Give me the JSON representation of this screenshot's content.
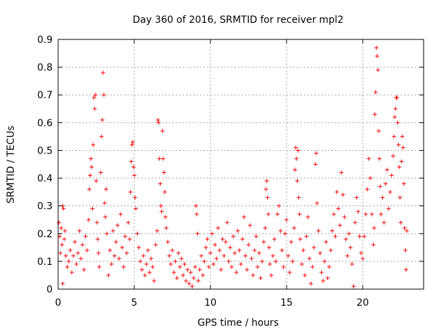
{
  "chart_data": {
    "type": "scatter",
    "title": "Day 360 of 2016, SRMTID for receiver mpl2",
    "xlabel": "GPS time / hours",
    "ylabel": "SRMTID / TECUs",
    "xlim": [
      0,
      24
    ],
    "ylim": [
      0,
      0.9
    ],
    "xticks": [
      0,
      5,
      10,
      15,
      20
    ],
    "xtick_labels": [
      "0",
      "5",
      "10",
      "15",
      "20"
    ],
    "yticks": [
      0,
      0.1,
      0.2,
      0.3,
      0.4,
      0.5,
      0.6,
      0.7,
      0.8,
      0.9
    ],
    "ytick_labels": [
      "0",
      "0.1",
      "0.2",
      "0.3",
      "0.4",
      "0.5",
      "0.6",
      "0.7",
      "0.8",
      "0.9"
    ],
    "grid": true,
    "marker": "+",
    "series": [
      {
        "name": "SRMTID",
        "color": "#ff0000",
        "points": [
          [
            0.05,
            0.24
          ],
          [
            0.1,
            0.19
          ],
          [
            0.15,
            0.13
          ],
          [
            0.2,
            0.22
          ],
          [
            0.25,
            0.16
          ],
          [
            0.3,
            0.3
          ],
          [
            0.35,
            0.29
          ],
          [
            0.4,
            0.18
          ],
          [
            0.45,
            0.21
          ],
          [
            0.5,
            0.12
          ],
          [
            0.3,
            0.02
          ],
          [
            0.6,
            0.08
          ],
          [
            0.7,
            0.1
          ],
          [
            0.8,
            0.14
          ],
          [
            0.9,
            0.06
          ],
          [
            1.0,
            0.12
          ],
          [
            1.1,
            0.17
          ],
          [
            1.2,
            0.09
          ],
          [
            1.3,
            0.13
          ],
          [
            1.4,
            0.21
          ],
          [
            1.5,
            0.11
          ],
          [
            1.6,
            0.16
          ],
          [
            1.7,
            0.07
          ],
          [
            1.8,
            0.19
          ],
          [
            1.9,
            0.14
          ],
          [
            2.0,
            0.25
          ],
          [
            2.05,
            0.36
          ],
          [
            2.1,
            0.41
          ],
          [
            2.15,
            0.47
          ],
          [
            2.2,
            0.44
          ],
          [
            2.25,
            0.29
          ],
          [
            2.3,
            0.52
          ],
          [
            2.35,
            0.69
          ],
          [
            2.4,
            0.65
          ],
          [
            2.45,
            0.7
          ],
          [
            2.5,
            0.39
          ],
          [
            2.55,
            0.24
          ],
          [
            2.6,
            0.18
          ],
          [
            2.65,
            0.13
          ],
          [
            2.7,
            0.08
          ],
          [
            2.8,
            0.42
          ],
          [
            2.85,
            0.55
          ],
          [
            2.9,
            0.61
          ],
          [
            2.95,
            0.78
          ],
          [
            3.0,
            0.7
          ],
          [
            3.05,
            0.31
          ],
          [
            3.1,
            0.26
          ],
          [
            3.15,
            0.36
          ],
          [
            3.2,
            0.2
          ],
          [
            3.3,
            0.05
          ],
          [
            3.4,
            0.14
          ],
          [
            3.5,
            0.09
          ],
          [
            3.6,
            0.21
          ],
          [
            3.7,
            0.12
          ],
          [
            3.8,
            0.17
          ],
          [
            3.9,
            0.23
          ],
          [
            4.0,
            0.11
          ],
          [
            4.1,
            0.27
          ],
          [
            4.2,
            0.15
          ],
          [
            4.3,
            0.08
          ],
          [
            4.4,
            0.19
          ],
          [
            4.5,
            0.13
          ],
          [
            4.6,
            0.24
          ],
          [
            4.7,
            0.18
          ],
          [
            4.75,
            0.35
          ],
          [
            4.8,
            0.46
          ],
          [
            4.85,
            0.52
          ],
          [
            4.9,
            0.53
          ],
          [
            4.95,
            0.44
          ],
          [
            5.0,
            0.41
          ],
          [
            5.05,
            0.33
          ],
          [
            5.1,
            0.29
          ],
          [
            5.2,
            0.2
          ],
          [
            5.3,
            0.15
          ],
          [
            5.4,
            0.1
          ],
          [
            5.5,
            0.07
          ],
          [
            5.6,
            0.12
          ],
          [
            5.7,
            0.05
          ],
          [
            5.8,
            0.09
          ],
          [
            5.9,
            0.14
          ],
          [
            6.0,
            0.06
          ],
          [
            6.1,
            0.11
          ],
          [
            6.2,
            0.08
          ],
          [
            6.3,
            0.03
          ],
          [
            6.4,
            0.16
          ],
          [
            6.5,
            0.21
          ],
          [
            6.55,
            0.61
          ],
          [
            6.6,
            0.6
          ],
          [
            6.65,
            0.47
          ],
          [
            6.7,
            0.38
          ],
          [
            6.75,
            0.3
          ],
          [
            6.8,
            0.28
          ],
          [
            6.85,
            0.57
          ],
          [
            6.9,
            0.47
          ],
          [
            6.95,
            0.42
          ],
          [
            7.0,
            0.35
          ],
          [
            7.05,
            0.26
          ],
          [
            7.1,
            0.22
          ],
          [
            7.2,
            0.17
          ],
          [
            7.3,
            0.12
          ],
          [
            7.4,
            0.09
          ],
          [
            7.5,
            0.14
          ],
          [
            7.6,
            0.06
          ],
          [
            7.7,
            0.1
          ],
          [
            7.8,
            0.04
          ],
          [
            7.9,
            0.13
          ],
          [
            8.0,
            0.08
          ],
          [
            8.1,
            0.11
          ],
          [
            8.2,
            0.05
          ],
          [
            8.3,
            0.09
          ],
          [
            8.4,
            0.03
          ],
          [
            8.5,
            0.07
          ],
          [
            8.6,
            0.02
          ],
          [
            8.7,
            0.06
          ],
          [
            8.8,
            0.01
          ],
          [
            8.9,
            0.04
          ],
          [
            9.0,
            0.08
          ],
          [
            9.05,
            0.3
          ],
          [
            9.1,
            0.27
          ],
          [
            9.15,
            0.2
          ],
          [
            9.2,
            0.03
          ],
          [
            9.3,
            0.07
          ],
          [
            9.4,
            0.12
          ],
          [
            9.5,
            0.05
          ],
          [
            9.6,
            0.1
          ],
          [
            9.7,
            0.15
          ],
          [
            9.8,
            0.18
          ],
          [
            9.9,
            0.08
          ],
          [
            10.0,
            0.13
          ],
          [
            10.1,
            0.2
          ],
          [
            10.2,
            0.09
          ],
          [
            10.3,
            0.16
          ],
          [
            10.4,
            0.11
          ],
          [
            10.5,
            0.22
          ],
          [
            10.6,
            0.14
          ],
          [
            10.7,
            0.07
          ],
          [
            10.8,
            0.18
          ],
          [
            10.9,
            0.12
          ],
          [
            11.0,
            0.17
          ],
          [
            11.1,
            0.24
          ],
          [
            11.2,
            0.1
          ],
          [
            11.3,
            0.15
          ],
          [
            11.4,
            0.08
          ],
          [
            11.5,
            0.19
          ],
          [
            11.6,
            0.13
          ],
          [
            11.7,
            0.06
          ],
          [
            11.8,
            0.21
          ],
          [
            11.9,
            0.14
          ],
          [
            12.0,
            0.09
          ],
          [
            12.1,
            0.18
          ],
          [
            12.2,
            0.26
          ],
          [
            12.3,
            0.12
          ],
          [
            12.4,
            0.07
          ],
          [
            12.5,
            0.16
          ],
          [
            12.6,
            0.23
          ],
          [
            12.7,
            0.11
          ],
          [
            12.8,
            0.05
          ],
          [
            12.9,
            0.14
          ],
          [
            13.0,
            0.19
          ],
          [
            13.1,
            0.08
          ],
          [
            13.2,
            0.13
          ],
          [
            13.3,
            0.04
          ],
          [
            13.4,
            0.1
          ],
          [
            13.5,
            0.17
          ],
          [
            13.6,
            0.22
          ],
          [
            13.65,
            0.36
          ],
          [
            13.7,
            0.39
          ],
          [
            13.75,
            0.33
          ],
          [
            13.8,
            0.27
          ],
          [
            13.85,
            0.15
          ],
          [
            13.9,
            0.09
          ],
          [
            14.0,
            0.05
          ],
          [
            14.1,
            0.12
          ],
          [
            14.2,
            0.18
          ],
          [
            14.3,
            0.1
          ],
          [
            14.4,
            0.27
          ],
          [
            14.5,
            0.3
          ],
          [
            14.6,
            0.21
          ],
          [
            14.7,
            0.14
          ],
          [
            14.8,
            0.08
          ],
          [
            14.9,
            0.2
          ],
          [
            15.0,
            0.25
          ],
          [
            15.1,
            0.12
          ],
          [
            15.2,
            0.06
          ],
          [
            15.3,
            0.17
          ],
          [
            15.4,
            0.1
          ],
          [
            15.5,
            0.22
          ],
          [
            15.55,
            0.43
          ],
          [
            15.6,
            0.51
          ],
          [
            15.65,
            0.47
          ],
          [
            15.7,
            0.39
          ],
          [
            15.75,
            0.5
          ],
          [
            15.8,
            0.33
          ],
          [
            15.85,
            0.27
          ],
          [
            15.9,
            0.18
          ],
          [
            16.0,
            0.09
          ],
          [
            16.1,
            0.14
          ],
          [
            16.2,
            0.05
          ],
          [
            16.3,
            0.19
          ],
          [
            16.4,
            0.26
          ],
          [
            16.5,
            0.11
          ],
          [
            16.6,
            0.02
          ],
          [
            16.7,
            0.08
          ],
          [
            16.8,
            0.15
          ],
          [
            16.9,
            0.45
          ],
          [
            16.95,
            0.49
          ],
          [
            17.0,
            0.31
          ],
          [
            17.1,
            0.21
          ],
          [
            17.2,
            0.13
          ],
          [
            17.3,
            0.06
          ],
          [
            17.4,
            0.03
          ],
          [
            17.5,
            0.1
          ],
          [
            17.6,
            0.17
          ],
          [
            17.7,
            0.04
          ],
          [
            17.8,
            0.08
          ],
          [
            17.9,
            0.14
          ],
          [
            18.0,
            0.21
          ],
          [
            18.1,
            0.27
          ],
          [
            18.2,
            0.19
          ],
          [
            18.3,
            0.35
          ],
          [
            18.4,
            0.29
          ],
          [
            18.5,
            0.23
          ],
          [
            18.6,
            0.42
          ],
          [
            18.7,
            0.34
          ],
          [
            18.8,
            0.26
          ],
          [
            18.9,
            0.18
          ],
          [
            19.0,
            0.12
          ],
          [
            19.1,
            0.2
          ],
          [
            19.2,
            0.15
          ],
          [
            19.3,
            0.09
          ],
          [
            19.4,
            0.01
          ],
          [
            19.5,
            0.24
          ],
          [
            19.6,
            0.33
          ],
          [
            19.7,
            0.28
          ],
          [
            19.8,
            0.19
          ],
          [
            19.9,
            0.13
          ],
          [
            20.0,
            0.11
          ],
          [
            20.1,
            0.19
          ],
          [
            20.2,
            0.27
          ],
          [
            20.3,
            0.36
          ],
          [
            20.4,
            0.47
          ],
          [
            20.5,
            0.4
          ],
          [
            20.6,
            0.27
          ],
          [
            20.7,
            0.16
          ],
          [
            20.75,
            0.22
          ],
          [
            20.8,
            0.63
          ],
          [
            20.85,
            0.71
          ],
          [
            20.9,
            0.87
          ],
          [
            20.95,
            0.84
          ],
          [
            21.0,
            0.79
          ],
          [
            21.05,
            0.57
          ],
          [
            21.1,
            0.47
          ],
          [
            21.15,
            0.37
          ],
          [
            21.2,
            0.27
          ],
          [
            21.3,
            0.33
          ],
          [
            21.4,
            0.24
          ],
          [
            21.5,
            0.38
          ],
          [
            21.6,
            0.43
          ],
          [
            21.7,
            0.29
          ],
          [
            21.8,
            0.35
          ],
          [
            21.9,
            0.41
          ],
          [
            22.0,
            0.48
          ],
          [
            22.05,
            0.55
          ],
          [
            22.1,
            0.62
          ],
          [
            22.15,
            0.65
          ],
          [
            22.2,
            0.69
          ],
          [
            22.25,
            0.69
          ],
          [
            22.3,
            0.6
          ],
          [
            22.35,
            0.52
          ],
          [
            22.4,
            0.44
          ],
          [
            22.45,
            0.33
          ],
          [
            22.5,
            0.24
          ],
          [
            22.55,
            0.46
          ],
          [
            22.6,
            0.55
          ],
          [
            22.65,
            0.51
          ],
          [
            22.7,
            0.38
          ],
          [
            22.75,
            0.22
          ],
          [
            22.8,
            0.14
          ],
          [
            22.85,
            0.07
          ],
          [
            22.9,
            0.21
          ]
        ]
      }
    ]
  }
}
